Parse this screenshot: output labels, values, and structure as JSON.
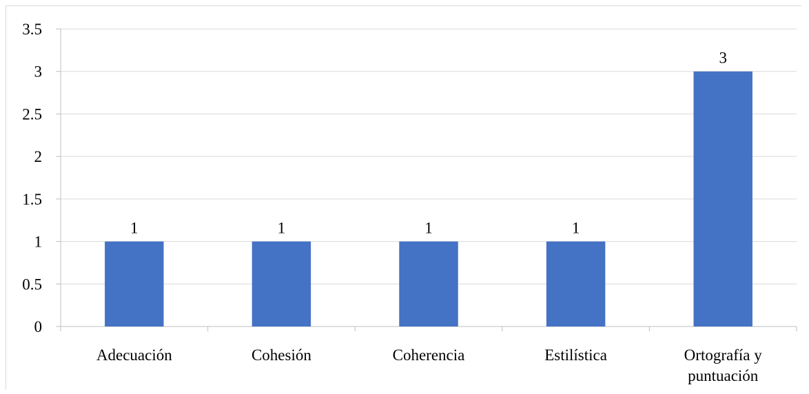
{
  "chart_data": {
    "type": "bar",
    "categories": [
      "Adecuación",
      "Cohesión",
      "Coherencia",
      "Estilística",
      "Ortografía y puntuación"
    ],
    "category_lines": [
      [
        "Adecuación"
      ],
      [
        "Cohesión"
      ],
      [
        "Coherencia"
      ],
      [
        "Estilística"
      ],
      [
        "Ortografía y",
        "puntuación"
      ]
    ],
    "values": [
      1,
      1,
      1,
      1,
      3
    ],
    "data_labels": [
      "1",
      "1",
      "1",
      "1",
      "3"
    ],
    "ylim": [
      0,
      3.5
    ],
    "yticks": [
      0,
      0.5,
      1,
      1.5,
      2,
      2.5,
      3,
      3.5
    ],
    "ytick_labels": [
      "0",
      "0.5",
      "1",
      "1.5",
      "2",
      "2.5",
      "3",
      "3.5"
    ],
    "title": "",
    "xlabel": "",
    "ylabel": "",
    "grid": true,
    "legend": "none",
    "colors": {
      "bar": "#4472c4",
      "grid": "#d9d9d9",
      "axis": "#bfbfbf"
    }
  }
}
